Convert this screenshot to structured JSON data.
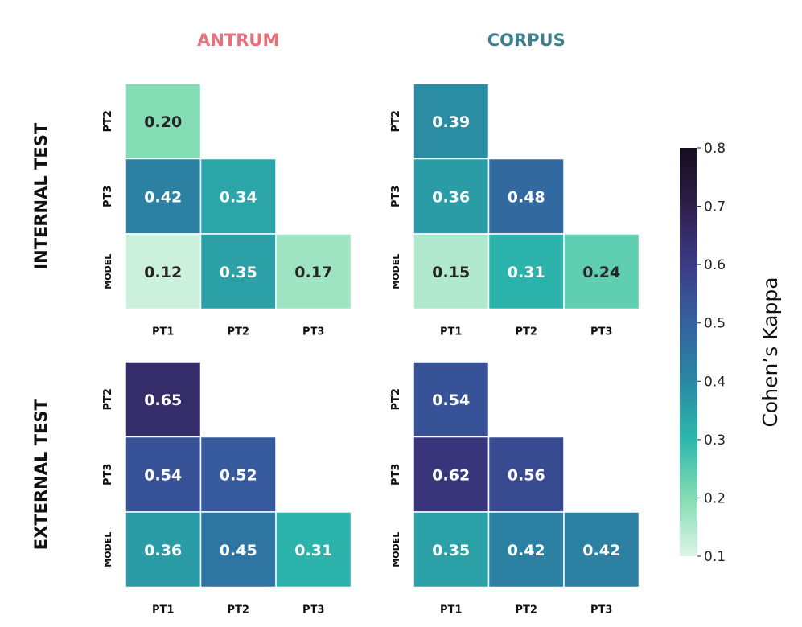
{
  "chart_data": {
    "type": "heatmap",
    "columns": [
      {
        "title": "ANTRUM",
        "title_color": "#e8707a"
      },
      {
        "title": "CORPUS",
        "title_color": "#3d7f8c"
      }
    ],
    "rows": [
      {
        "title": "INTERNAL TEST"
      },
      {
        "title": "EXTERNAL TEST"
      }
    ],
    "x_tick_labels": [
      "PT1",
      "PT2",
      "PT3"
    ],
    "y_tick_labels": [
      "PT2",
      "PT3",
      "MODEL"
    ],
    "panels": [
      {
        "row": "INTERNAL TEST",
        "column": "ANTRUM",
        "values": [
          [
            0.2
          ],
          [
            0.42,
            0.34
          ],
          [
            0.12,
            0.35,
            0.17
          ]
        ],
        "labels": [
          [
            "0.20"
          ],
          [
            "0.42",
            "0.34"
          ],
          [
            "0.12",
            "0.35",
            "0.17"
          ]
        ]
      },
      {
        "row": "INTERNAL TEST",
        "column": "CORPUS",
        "values": [
          [
            0.39
          ],
          [
            0.36,
            0.48
          ],
          [
            0.15,
            0.31,
            0.24
          ]
        ],
        "labels": [
          [
            "0.39"
          ],
          [
            "0.36",
            "0.48"
          ],
          [
            "0.15",
            "0.31",
            "0.24"
          ]
        ]
      },
      {
        "row": "EXTERNAL TEST",
        "column": "ANTRUM",
        "values": [
          [
            0.65
          ],
          [
            0.54,
            0.52
          ],
          [
            0.36,
            0.45,
            0.31
          ]
        ],
        "labels": [
          [
            "0.65"
          ],
          [
            "0.54",
            "0.52"
          ],
          [
            "0.36",
            "0.45",
            "0.31"
          ]
        ]
      },
      {
        "row": "EXTERNAL TEST",
        "column": "CORPUS",
        "values": [
          [
            0.54
          ],
          [
            0.62,
            0.56
          ],
          [
            0.35,
            0.42,
            0.42
          ]
        ],
        "labels": [
          [
            "0.54"
          ],
          [
            "0.62",
            "0.56"
          ],
          [
            "0.35",
            "0.42",
            "0.42"
          ]
        ]
      }
    ],
    "colorbar": {
      "label": "Cohen’s Kappa",
      "range": [
        0.1,
        0.8
      ],
      "ticks": [
        {
          "value": 0.8,
          "label": "0.8"
        },
        {
          "value": 0.7,
          "label": "0.7"
        },
        {
          "value": 0.6,
          "label": "0.6"
        },
        {
          "value": 0.5,
          "label": "0.5"
        },
        {
          "value": 0.4,
          "label": "0.4"
        },
        {
          "value": 0.3,
          "label": "0.3"
        },
        {
          "value": 0.2,
          "label": "0.2"
        },
        {
          "value": 0.1,
          "label": "0.1"
        }
      ],
      "colorscale": [
        "#ddf5e6",
        "#83dcb3",
        "#2cb8ac",
        "#2a88a2",
        "#3462a0",
        "#3c3b86",
        "#2e1e4c",
        "#150e1e"
      ]
    }
  }
}
